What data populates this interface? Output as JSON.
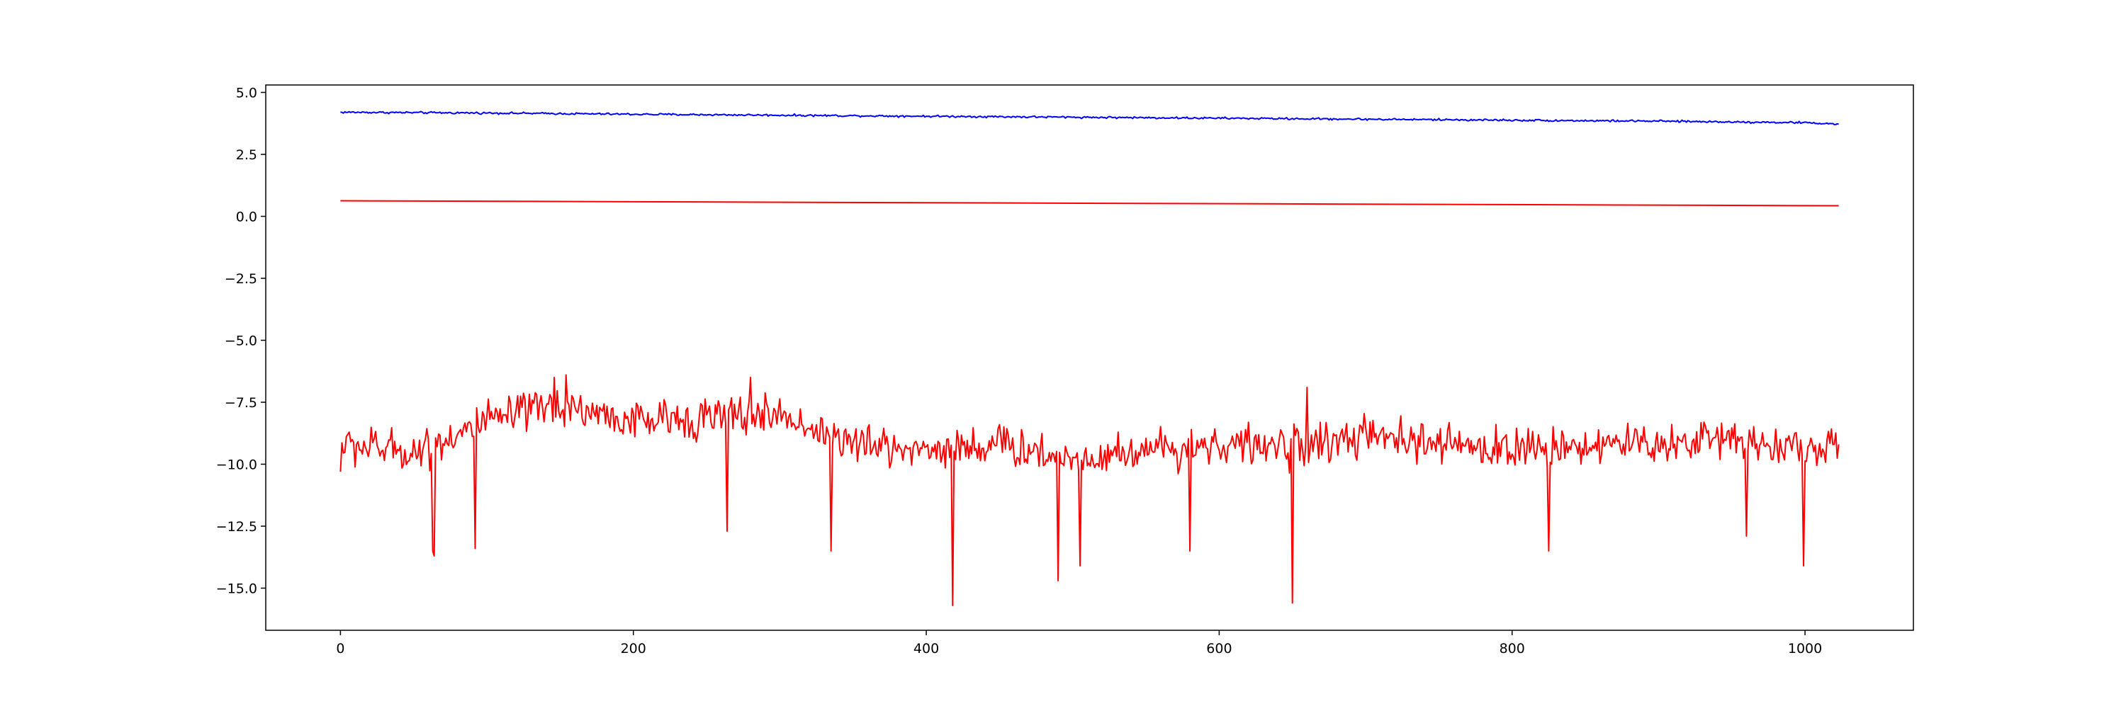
{
  "chart_data": {
    "type": "line",
    "title": "",
    "xlabel": "",
    "ylabel": "",
    "xlim": [
      -51,
      1074
    ],
    "ylim": [
      -16.7,
      5.3
    ],
    "grid": false,
    "legend": "none",
    "x_ticks": [
      0,
      200,
      400,
      600,
      800,
      1000
    ],
    "x_tick_labels": [
      "0",
      "200",
      "400",
      "600",
      "800",
      "1000"
    ],
    "y_ticks": [
      5.0,
      2.5,
      0.0,
      -2.5,
      -5.0,
      -7.5,
      -10.0,
      -12.5,
      -15.0
    ],
    "y_tick_labels": [
      "5.0",
      "2.5",
      "0.0",
      "−2.5",
      "−5.0",
      "−7.5",
      "−10.0",
      "−12.5",
      "−15.0"
    ],
    "series": [
      {
        "color": "#0000ff",
        "style": "noisy",
        "x_start": 0,
        "x_end": 1023,
        "anchors_x": [
          0,
          100,
          200,
          300,
          400,
          500,
          600,
          700,
          800,
          900,
          1000,
          1023
        ],
        "anchors_y": [
          4.2,
          4.17,
          4.12,
          4.08,
          4.04,
          4.0,
          3.96,
          3.92,
          3.88,
          3.84,
          3.78,
          3.72
        ],
        "noise_amplitude": 0.06
      },
      {
        "color": "#ff0000",
        "style": "smooth",
        "x": [
          0,
          1023
        ],
        "y": [
          0.63,
          0.43
        ]
      },
      {
        "color": "#ff0000",
        "style": "noisy",
        "x_start": 0,
        "x_end": 1023,
        "anchors_x": [
          0,
          50,
          100,
          150,
          200,
          250,
          300,
          350,
          400,
          450,
          500,
          550,
          600,
          650,
          700,
          750,
          800,
          850,
          900,
          950,
          1000,
          1023
        ],
        "anchors_y": [
          -9.2,
          -9.5,
          -8.3,
          -7.6,
          -8.3,
          -8.1,
          -8.0,
          -9.2,
          -9.4,
          -9.2,
          -9.8,
          -9.4,
          -9.2,
          -9.3,
          -8.9,
          -9.2,
          -9.4,
          -9.2,
          -9.2,
          -8.9,
          -9.4,
          -9.3
        ],
        "noise_amplitude": 1.2,
        "spikes": [
          {
            "x": 0,
            "y": -10.3
          },
          {
            "x": 63,
            "y": -13.5
          },
          {
            "x": 64,
            "y": -13.7
          },
          {
            "x": 92,
            "y": -13.4
          },
          {
            "x": 146,
            "y": -6.5
          },
          {
            "x": 154,
            "y": -6.4
          },
          {
            "x": 264,
            "y": -12.7
          },
          {
            "x": 280,
            "y": -6.5
          },
          {
            "x": 335,
            "y": -13.5
          },
          {
            "x": 418,
            "y": -15.7
          },
          {
            "x": 490,
            "y": -14.7
          },
          {
            "x": 505,
            "y": -14.1
          },
          {
            "x": 580,
            "y": -13.5
          },
          {
            "x": 650,
            "y": -15.6
          },
          {
            "x": 660,
            "y": -6.9
          },
          {
            "x": 825,
            "y": -13.5
          },
          {
            "x": 960,
            "y": -12.9
          },
          {
            "x": 999,
            "y": -14.1
          },
          {
            "x": 1023,
            "y": -9.2
          }
        ]
      }
    ]
  }
}
